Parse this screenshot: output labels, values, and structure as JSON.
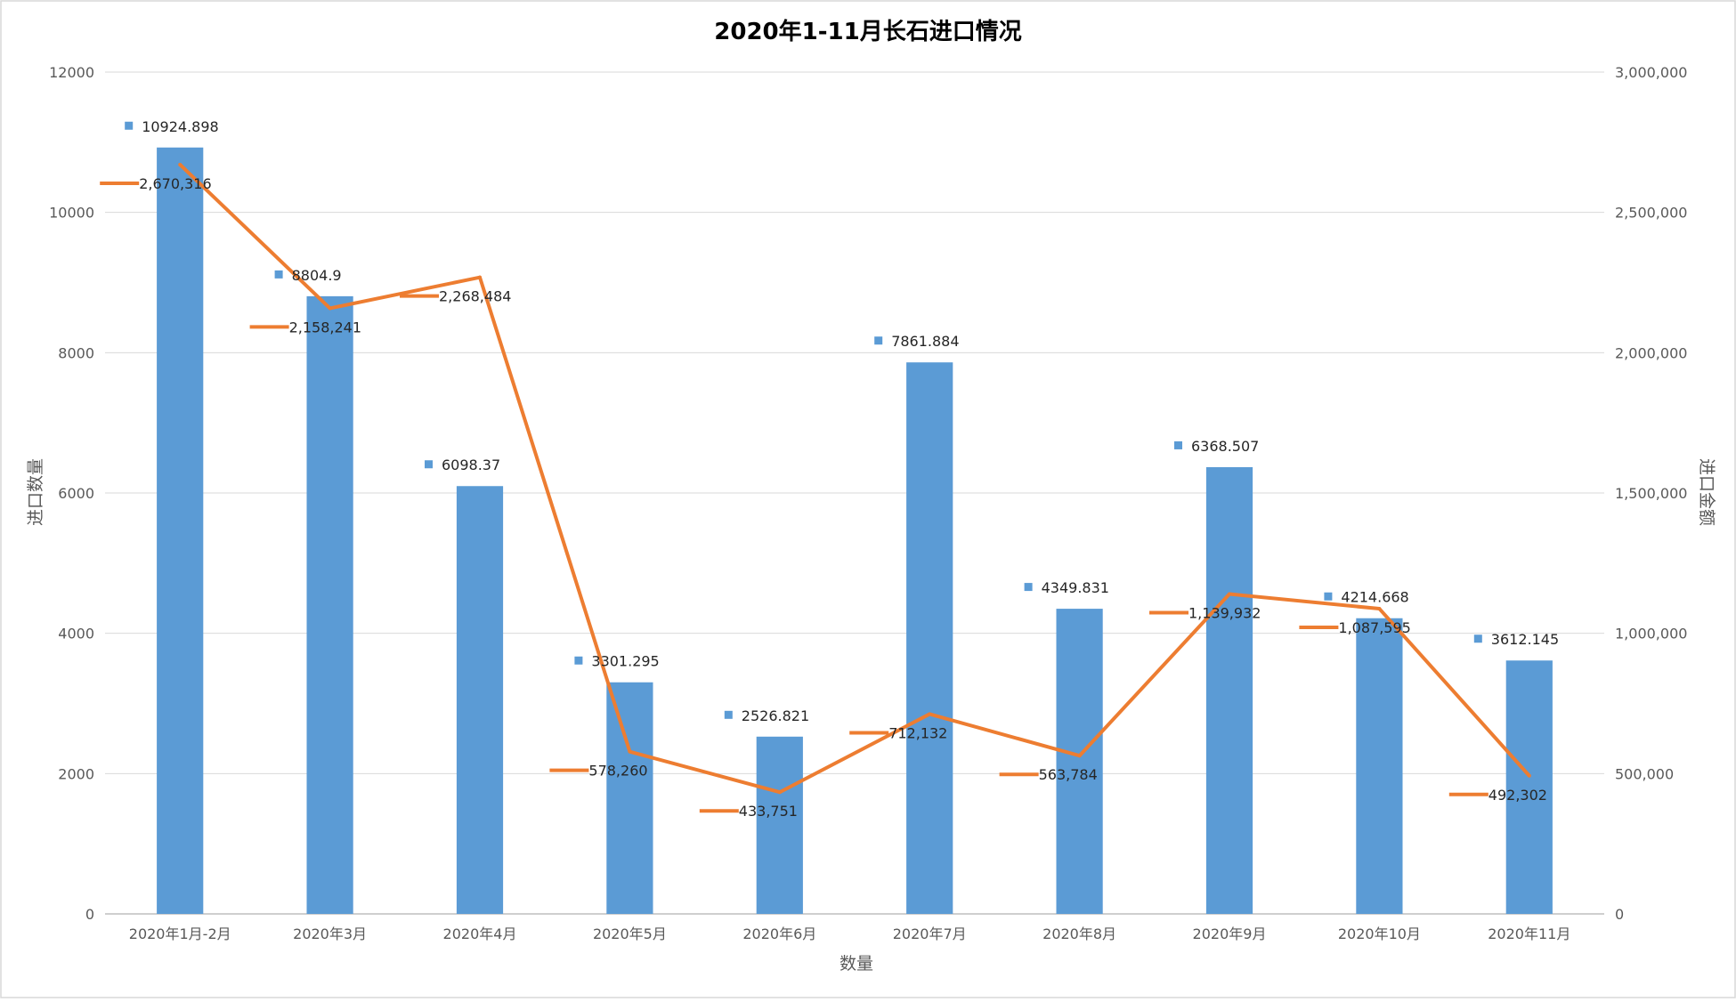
{
  "chart_data": {
    "type": "bar",
    "title": "2020年1-11月长石进口情况",
    "xlabel": "数量",
    "ylabel": "进口数量",
    "y2label": "进口金额",
    "categories": [
      "2020年1月-2月",
      "2020年3月",
      "2020年4月",
      "2020年5月",
      "2020年6月",
      "2020年7月",
      "2020年8月",
      "2020年9月",
      "2020年10月",
      "2020年11月"
    ],
    "ylim": [
      0,
      12000
    ],
    "y_ticks": [
      "0",
      "2000",
      "4000",
      "6000",
      "8000",
      "10000",
      "12000"
    ],
    "y2lim": [
      0,
      3000000
    ],
    "y2_ticks": [
      "0",
      "500,000",
      "1,000,000",
      "1,500,000",
      "2,000,000",
      "2,500,000",
      "3,000,000"
    ],
    "grid": true,
    "series": [
      {
        "type": "bar",
        "axis": "left",
        "color": "#5B9BD5",
        "values": [
          10924.898,
          8804.9,
          6098.37,
          3301.295,
          2526.821,
          7861.884,
          4349.831,
          6368.507,
          4214.668,
          3612.145
        ],
        "labels": [
          "10924.898",
          "8804.9",
          "6098.37",
          "3301.295",
          "2526.821",
          "7861.884",
          "4349.831",
          "6368.507",
          "4214.668",
          "3612.145"
        ]
      },
      {
        "type": "line",
        "axis": "right",
        "color": "#ED7D31",
        "values": [
          2670316,
          2158241,
          2268484,
          578260,
          433751,
          712132,
          563784,
          1139932,
          1087595,
          492302
        ],
        "labels": [
          "2,670,316",
          "2,158,241",
          "2,268,484",
          "578,260",
          "433,751",
          "712,132",
          "563,784",
          "1,139,932",
          "1,087,595",
          "492,302"
        ]
      }
    ]
  }
}
